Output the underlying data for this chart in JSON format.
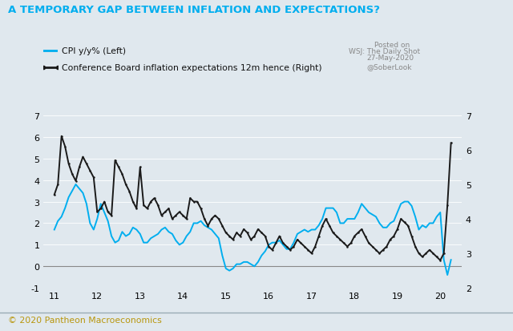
{
  "title": "A TEMPORARY GAP BETWEEN INFLATION AND EXPECTATIONS?",
  "title_color": "#00AEEF",
  "background_color": "#E0E8EE",
  "cpi_label": "CPI y/y% (Left)",
  "cb_label": "Conference Board inflation expectations 12m hence (Right)",
  "cpi_color": "#00AEEF",
  "cb_color": "#1a1a1a",
  "footer_text": "© 2020 Pantheon Macroeconomics",
  "footer_color": "#B8960C",
  "annotation1": "Posted on",
  "annotation2": "WSJ: The Daily Shot",
  "annotation3": "27-May-2020",
  "annotation4": "@SoberLook",
  "xlim": [
    10.75,
    20.5
  ],
  "ylim_left": [
    -1,
    7
  ],
  "ylim_right": [
    2,
    7
  ],
  "yticks_left": [
    -1,
    0,
    1,
    2,
    3,
    4,
    5,
    6,
    7
  ],
  "yticks_right": [
    2,
    3,
    4,
    5,
    6,
    7
  ],
  "xticks": [
    11,
    12,
    13,
    14,
    15,
    16,
    17,
    18,
    19,
    20
  ],
  "cpi_x": [
    11.0,
    11.083,
    11.167,
    11.25,
    11.333,
    11.417,
    11.5,
    11.583,
    11.667,
    11.75,
    11.833,
    11.917,
    12.0,
    12.083,
    12.167,
    12.25,
    12.333,
    12.417,
    12.5,
    12.583,
    12.667,
    12.75,
    12.833,
    12.917,
    13.0,
    13.083,
    13.167,
    13.25,
    13.333,
    13.417,
    13.5,
    13.583,
    13.667,
    13.75,
    13.833,
    13.917,
    14.0,
    14.083,
    14.167,
    14.25,
    14.333,
    14.417,
    14.5,
    14.583,
    14.667,
    14.75,
    14.833,
    14.917,
    15.0,
    15.083,
    15.167,
    15.25,
    15.333,
    15.417,
    15.5,
    15.583,
    15.667,
    15.75,
    15.833,
    15.917,
    16.0,
    16.083,
    16.167,
    16.25,
    16.333,
    16.417,
    16.5,
    16.583,
    16.667,
    16.75,
    16.833,
    16.917,
    17.0,
    17.083,
    17.167,
    17.25,
    17.333,
    17.417,
    17.5,
    17.583,
    17.667,
    17.75,
    17.833,
    17.917,
    18.0,
    18.083,
    18.167,
    18.25,
    18.333,
    18.417,
    18.5,
    18.583,
    18.667,
    18.75,
    18.833,
    18.917,
    19.0,
    19.083,
    19.167,
    19.25,
    19.333,
    19.417,
    19.5,
    19.583,
    19.667,
    19.75,
    19.833,
    19.917,
    20.0,
    20.083,
    20.167,
    20.25
  ],
  "cpi_y": [
    1.7,
    2.1,
    2.3,
    2.7,
    3.2,
    3.5,
    3.8,
    3.6,
    3.4,
    2.9,
    2.0,
    1.7,
    2.2,
    2.9,
    2.5,
    2.1,
    1.4,
    1.1,
    1.2,
    1.6,
    1.4,
    1.5,
    1.8,
    1.7,
    1.5,
    1.1,
    1.1,
    1.3,
    1.4,
    1.5,
    1.7,
    1.8,
    1.6,
    1.5,
    1.2,
    1.0,
    1.1,
    1.4,
    1.6,
    2.0,
    2.0,
    2.1,
    1.9,
    1.8,
    1.7,
    1.5,
    1.3,
    0.5,
    -0.1,
    -0.2,
    -0.1,
    0.1,
    0.1,
    0.2,
    0.2,
    0.1,
    0.0,
    0.2,
    0.5,
    0.7,
    1.0,
    1.1,
    1.1,
    1.2,
    1.0,
    0.8,
    0.8,
    1.1,
    1.5,
    1.6,
    1.7,
    1.6,
    1.7,
    1.7,
    1.9,
    2.2,
    2.7,
    2.7,
    2.7,
    2.5,
    2.0,
    2.0,
    2.2,
    2.2,
    2.2,
    2.5,
    2.9,
    2.7,
    2.5,
    2.4,
    2.3,
    2.0,
    1.8,
    1.8,
    2.0,
    2.1,
    2.5,
    2.9,
    3.0,
    3.0,
    2.8,
    2.3,
    1.7,
    1.9,
    1.8,
    2.0,
    2.0,
    2.3,
    2.5,
    0.3,
    -0.4,
    0.3
  ],
  "cb_x": [
    11.0,
    11.083,
    11.167,
    11.25,
    11.333,
    11.417,
    11.5,
    11.583,
    11.667,
    11.75,
    11.833,
    11.917,
    12.0,
    12.083,
    12.167,
    12.25,
    12.333,
    12.417,
    12.5,
    12.583,
    12.667,
    12.75,
    12.833,
    12.917,
    13.0,
    13.083,
    13.167,
    13.25,
    13.333,
    13.417,
    13.5,
    13.583,
    13.667,
    13.75,
    13.833,
    13.917,
    14.0,
    14.083,
    14.167,
    14.25,
    14.333,
    14.417,
    14.5,
    14.583,
    14.667,
    14.75,
    14.833,
    14.917,
    15.0,
    15.083,
    15.167,
    15.25,
    15.333,
    15.417,
    15.5,
    15.583,
    15.667,
    15.75,
    15.833,
    15.917,
    16.0,
    16.083,
    16.167,
    16.25,
    16.333,
    16.417,
    16.5,
    16.583,
    16.667,
    16.75,
    16.833,
    16.917,
    17.0,
    17.083,
    17.167,
    17.25,
    17.333,
    17.417,
    17.5,
    17.583,
    17.667,
    17.75,
    17.833,
    17.917,
    18.0,
    18.083,
    18.167,
    18.25,
    18.333,
    18.417,
    18.5,
    18.583,
    18.667,
    18.75,
    18.833,
    18.917,
    19.0,
    19.083,
    19.167,
    19.25,
    19.333,
    19.417,
    19.5,
    19.583,
    19.667,
    19.75,
    19.833,
    19.917,
    20.0,
    20.083,
    20.167,
    20.25
  ],
  "cb_y": [
    4.7,
    5.0,
    6.4,
    6.1,
    5.6,
    5.3,
    5.1,
    5.5,
    5.8,
    5.6,
    5.4,
    5.2,
    4.2,
    4.3,
    4.5,
    4.2,
    4.1,
    5.7,
    5.5,
    5.3,
    5.0,
    4.8,
    4.5,
    4.3,
    5.5,
    4.4,
    4.3,
    4.5,
    4.6,
    4.4,
    4.1,
    4.2,
    4.3,
    4.0,
    4.1,
    4.2,
    4.1,
    4.0,
    4.6,
    4.5,
    4.5,
    4.3,
    4.0,
    3.8,
    4.0,
    4.1,
    4.0,
    3.8,
    3.6,
    3.5,
    3.4,
    3.6,
    3.5,
    3.7,
    3.6,
    3.4,
    3.5,
    3.7,
    3.6,
    3.5,
    3.2,
    3.1,
    3.3,
    3.5,
    3.3,
    3.2,
    3.1,
    3.2,
    3.4,
    3.3,
    3.2,
    3.1,
    3.0,
    3.2,
    3.5,
    3.8,
    4.0,
    3.8,
    3.6,
    3.5,
    3.4,
    3.3,
    3.2,
    3.3,
    3.5,
    3.6,
    3.7,
    3.5,
    3.3,
    3.2,
    3.1,
    3.0,
    3.1,
    3.2,
    3.4,
    3.5,
    3.7,
    4.0,
    3.9,
    3.8,
    3.5,
    3.2,
    3.0,
    2.9,
    3.0,
    3.1,
    3.0,
    2.9,
    2.8,
    3.0,
    4.4,
    6.2
  ]
}
